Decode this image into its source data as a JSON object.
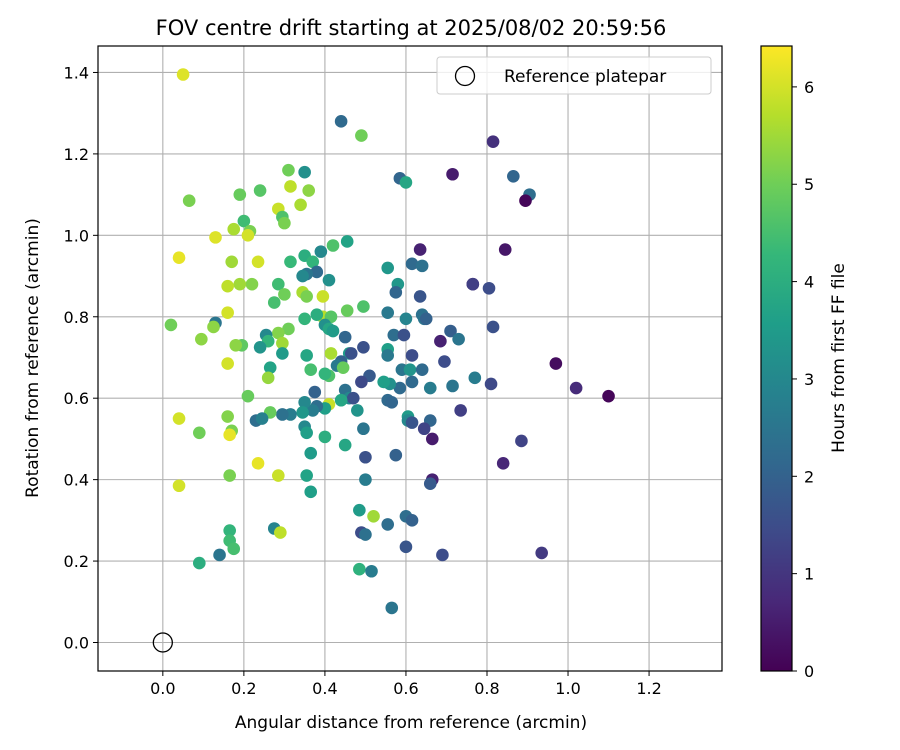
{
  "chart_data": {
    "type": "scatter",
    "title": "FOV centre drift starting at 2025/08/02 20:59:56",
    "xlabel": "Angular distance from reference (arcmin)",
    "ylabel": "Rotation from reference (arcmin)",
    "xlim": [
      -0.16,
      1.38
    ],
    "ylim": [
      -0.07,
      1.465
    ],
    "x_ticks": [
      0.0,
      0.2,
      0.4,
      0.6,
      0.8,
      1.0,
      1.2
    ],
    "x_tick_labels": [
      "0.0",
      "0.2",
      "0.4",
      "0.6",
      "0.8",
      "1.0",
      "1.2"
    ],
    "y_ticks": [
      0.0,
      0.2,
      0.4,
      0.6,
      0.8,
      1.0,
      1.2,
      1.4
    ],
    "y_tick_labels": [
      "0.0",
      "0.2",
      "0.4",
      "0.6",
      "0.8",
      "1.0",
      "1.2",
      "1.4"
    ],
    "grid": true,
    "legend": {
      "placement": "top-right",
      "entries": [
        {
          "label": "Reference platepar",
          "marker": "open-circle"
        }
      ]
    },
    "reference_point": {
      "x": 0.0,
      "y": 0.0
    },
    "colorbar": {
      "label": "Hours from first FF file",
      "colormap": "viridis",
      "range": [
        0,
        6.42
      ],
      "ticks": [
        0,
        1,
        2,
        3,
        4,
        5,
        6
      ],
      "tick_labels": [
        "0",
        "1",
        "2",
        "3",
        "4",
        "5",
        "6"
      ],
      "colors": [
        "#440154",
        "#482878",
        "#3e4a89",
        "#31688e",
        "#26828e",
        "#1f9e89",
        "#35b779",
        "#6ece58",
        "#b5de2b",
        "#fde725"
      ]
    },
    "points": [
      [
        0.05,
        1.395,
        6.1
      ],
      [
        0.49,
        1.245,
        5.0
      ],
      [
        0.44,
        1.28,
        2.2
      ],
      [
        0.815,
        1.23,
        0.9
      ],
      [
        0.31,
        1.16,
        5.0
      ],
      [
        0.35,
        1.155,
        3.2
      ],
      [
        0.315,
        1.12,
        5.8
      ],
      [
        0.36,
        1.11,
        5.3
      ],
      [
        0.585,
        1.14,
        2.1
      ],
      [
        0.6,
        1.13,
        3.8
      ],
      [
        0.715,
        1.15,
        0.5
      ],
      [
        0.865,
        1.145,
        2.1
      ],
      [
        0.905,
        1.1,
        2.3
      ],
      [
        0.895,
        1.085,
        0.1
      ],
      [
        0.065,
        1.085,
        5.1
      ],
      [
        0.19,
        1.1,
        4.9
      ],
      [
        0.24,
        1.11,
        4.7
      ],
      [
        0.34,
        1.075,
        5.6
      ],
      [
        0.285,
        1.065,
        5.9
      ],
      [
        0.295,
        1.045,
        4.6
      ],
      [
        0.3,
        1.03,
        5.1
      ],
      [
        0.2,
        1.035,
        4.4
      ],
      [
        0.175,
        1.015,
        5.6
      ],
      [
        0.215,
        1.01,
        5.1
      ],
      [
        0.21,
        1.0,
        6.0
      ],
      [
        0.13,
        0.995,
        6.1
      ],
      [
        0.455,
        0.985,
        3.7
      ],
      [
        0.42,
        0.975,
        4.6
      ],
      [
        0.39,
        0.96,
        3.0
      ],
      [
        0.635,
        0.965,
        0.6
      ],
      [
        0.845,
        0.965,
        0.4
      ],
      [
        0.04,
        0.945,
        6.2
      ],
      [
        0.235,
        0.935,
        6.0
      ],
      [
        0.315,
        0.935,
        4.3
      ],
      [
        0.35,
        0.95,
        4.0
      ],
      [
        0.37,
        0.935,
        4.2
      ],
      [
        0.17,
        0.935,
        5.5
      ],
      [
        0.555,
        0.92,
        3.4
      ],
      [
        0.615,
        0.93,
        2.2
      ],
      [
        0.64,
        0.925,
        2.4
      ],
      [
        0.38,
        0.91,
        2.2
      ],
      [
        0.355,
        0.905,
        2.5
      ],
      [
        0.345,
        0.9,
        3.0
      ],
      [
        0.41,
        0.89,
        3.2
      ],
      [
        0.285,
        0.88,
        4.4
      ],
      [
        0.22,
        0.88,
        5.2
      ],
      [
        0.19,
        0.88,
        5.5
      ],
      [
        0.16,
        0.875,
        5.8
      ],
      [
        0.58,
        0.88,
        3.4
      ],
      [
        0.575,
        0.86,
        2.1
      ],
      [
        0.765,
        0.88,
        0.4
      ],
      [
        0.765,
        0.88,
        1.2
      ],
      [
        0.805,
        0.87,
        1.5
      ],
      [
        0.635,
        0.85,
        1.7
      ],
      [
        0.3,
        0.855,
        5.0
      ],
      [
        0.345,
        0.86,
        5.6
      ],
      [
        0.355,
        0.85,
        5.1
      ],
      [
        0.395,
        0.85,
        5.9
      ],
      [
        0.275,
        0.835,
        4.5
      ],
      [
        0.455,
        0.815,
        4.9
      ],
      [
        0.495,
        0.825,
        4.6
      ],
      [
        0.16,
        0.81,
        6.0
      ],
      [
        0.555,
        0.81,
        2.6
      ],
      [
        0.395,
        0.8,
        5.7
      ],
      [
        0.415,
        0.8,
        4.7
      ],
      [
        0.35,
        0.795,
        4.2
      ],
      [
        0.38,
        0.805,
        4.0
      ],
      [
        0.4,
        0.78,
        3.2
      ],
      [
        0.6,
        0.795,
        2.9
      ],
      [
        0.64,
        0.805,
        2.4
      ],
      [
        0.645,
        0.795,
        2.5
      ],
      [
        0.65,
        0.795,
        2.0
      ],
      [
        0.815,
        0.775,
        1.6
      ],
      [
        0.02,
        0.78,
        5.0
      ],
      [
        0.13,
        0.785,
        2.5
      ],
      [
        0.125,
        0.775,
        5.3
      ],
      [
        0.095,
        0.745,
        5.3
      ],
      [
        0.41,
        0.77,
        3.8
      ],
      [
        0.42,
        0.765,
        3.5
      ],
      [
        0.45,
        0.75,
        2.1
      ],
      [
        0.31,
        0.77,
        5.0
      ],
      [
        0.285,
        0.76,
        5.2
      ],
      [
        0.255,
        0.755,
        3.0
      ],
      [
        0.26,
        0.74,
        4.2
      ],
      [
        0.295,
        0.735,
        5.5
      ],
      [
        0.195,
        0.73,
        4.8
      ],
      [
        0.18,
        0.73,
        5.3
      ],
      [
        0.24,
        0.725,
        3.3
      ],
      [
        0.57,
        0.755,
        2.3
      ],
      [
        0.595,
        0.755,
        1.6
      ],
      [
        0.71,
        0.765,
        1.9
      ],
      [
        0.73,
        0.745,
        2.5
      ],
      [
        0.685,
        0.74,
        0.6
      ],
      [
        0.555,
        0.72,
        3.6
      ],
      [
        0.555,
        0.705,
        2.6
      ],
      [
        0.46,
        0.71,
        3.5
      ],
      [
        0.465,
        0.71,
        1.6
      ],
      [
        0.495,
        0.725,
        1.6
      ],
      [
        0.415,
        0.71,
        5.6
      ],
      [
        0.355,
        0.705,
        3.8
      ],
      [
        0.295,
        0.71,
        3.5
      ],
      [
        0.615,
        0.705,
        1.5
      ],
      [
        0.44,
        0.69,
        2.0
      ],
      [
        0.43,
        0.68,
        2.6
      ],
      [
        0.445,
        0.675,
        4.9
      ],
      [
        0.16,
        0.685,
        6.0
      ],
      [
        0.265,
        0.675,
        3.7
      ],
      [
        0.365,
        0.67,
        4.5
      ],
      [
        0.41,
        0.655,
        4.6
      ],
      [
        0.4,
        0.66,
        4.2
      ],
      [
        0.51,
        0.655,
        1.8
      ],
      [
        0.59,
        0.67,
        2.5
      ],
      [
        0.61,
        0.67,
        3.3
      ],
      [
        0.64,
        0.67,
        2.2
      ],
      [
        0.695,
        0.69,
        1.5
      ],
      [
        0.77,
        0.65,
        2.7
      ],
      [
        0.81,
        0.635,
        1.4
      ],
      [
        0.97,
        0.685,
        0.2
      ],
      [
        0.66,
        0.625,
        2.7
      ],
      [
        0.715,
        0.63,
        2.5
      ],
      [
        0.615,
        0.64,
        2.2
      ],
      [
        0.585,
        0.625,
        2.2
      ],
      [
        0.56,
        0.635,
        3.2
      ],
      [
        0.545,
        0.64,
        3.6
      ],
      [
        0.49,
        0.64,
        1.4
      ],
      [
        0.45,
        0.62,
        2.4
      ],
      [
        0.375,
        0.615,
        2.0
      ],
      [
        0.26,
        0.65,
        5.4
      ],
      [
        0.21,
        0.605,
        4.9
      ],
      [
        1.02,
        0.625,
        0.8
      ],
      [
        1.1,
        0.605,
        0.1
      ],
      [
        0.46,
        0.6,
        3.0
      ],
      [
        0.47,
        0.6,
        1.6
      ],
      [
        0.44,
        0.595,
        3.8
      ],
      [
        0.41,
        0.585,
        5.9
      ],
      [
        0.4,
        0.575,
        3.6
      ],
      [
        0.38,
        0.58,
        2.3
      ],
      [
        0.37,
        0.57,
        2.7
      ],
      [
        0.35,
        0.59,
        3.0
      ],
      [
        0.345,
        0.565,
        3.4
      ],
      [
        0.315,
        0.56,
        2.7
      ],
      [
        0.295,
        0.56,
        2.4
      ],
      [
        0.265,
        0.565,
        4.9
      ],
      [
        0.23,
        0.545,
        2.3
      ],
      [
        0.245,
        0.55,
        2.8
      ],
      [
        0.16,
        0.555,
        5.2
      ],
      [
        0.04,
        0.55,
        6.0
      ],
      [
        0.555,
        0.595,
        2.2
      ],
      [
        0.565,
        0.59,
        2.1
      ],
      [
        0.605,
        0.555,
        3.5
      ],
      [
        0.605,
        0.545,
        3.0
      ],
      [
        0.615,
        0.54,
        1.7
      ],
      [
        0.66,
        0.545,
        2.1
      ],
      [
        0.735,
        0.57,
        1.2
      ],
      [
        0.48,
        0.57,
        3.3
      ],
      [
        0.495,
        0.525,
        2.5
      ],
      [
        0.35,
        0.53,
        3.0
      ],
      [
        0.355,
        0.515,
        3.6
      ],
      [
        0.17,
        0.52,
        5.1
      ],
      [
        0.165,
        0.51,
        6.2
      ],
      [
        0.09,
        0.515,
        5.0
      ],
      [
        0.4,
        0.505,
        4.0
      ],
      [
        0.45,
        0.485,
        3.8
      ],
      [
        0.645,
        0.525,
        1.3
      ],
      [
        0.665,
        0.5,
        0.5
      ],
      [
        0.885,
        0.495,
        1.3
      ],
      [
        0.575,
        0.46,
        2.0
      ],
      [
        0.5,
        0.455,
        1.6
      ],
      [
        0.235,
        0.44,
        6.2
      ],
      [
        0.285,
        0.41,
        5.9
      ],
      [
        0.355,
        0.41,
        3.7
      ],
      [
        0.365,
        0.465,
        3.5
      ],
      [
        0.165,
        0.41,
        5.1
      ],
      [
        0.04,
        0.385,
        6.0
      ],
      [
        0.84,
        0.44,
        0.7
      ],
      [
        0.665,
        0.4,
        0.6
      ],
      [
        0.66,
        0.39,
        1.8
      ],
      [
        0.5,
        0.4,
        2.7
      ],
      [
        0.365,
        0.37,
        3.6
      ],
      [
        0.485,
        0.325,
        3.5
      ],
      [
        0.52,
        0.31,
        5.5
      ],
      [
        0.555,
        0.29,
        2.3
      ],
      [
        0.6,
        0.31,
        2.3
      ],
      [
        0.615,
        0.3,
        2.0
      ],
      [
        0.49,
        0.27,
        1.5
      ],
      [
        0.5,
        0.265,
        2.4
      ],
      [
        0.275,
        0.28,
        2.9
      ],
      [
        0.29,
        0.27,
        5.8
      ],
      [
        0.165,
        0.275,
        4.2
      ],
      [
        0.165,
        0.25,
        4.4
      ],
      [
        0.175,
        0.23,
        4.5
      ],
      [
        0.14,
        0.215,
        2.5
      ],
      [
        0.09,
        0.195,
        4.0
      ],
      [
        0.485,
        0.18,
        4.1
      ],
      [
        0.515,
        0.175,
        2.7
      ],
      [
        0.6,
        0.235,
        1.7
      ],
      [
        0.69,
        0.215,
        1.5
      ],
      [
        0.935,
        0.22,
        1.1
      ],
      [
        0.565,
        0.085,
        2.5
      ]
    ]
  }
}
